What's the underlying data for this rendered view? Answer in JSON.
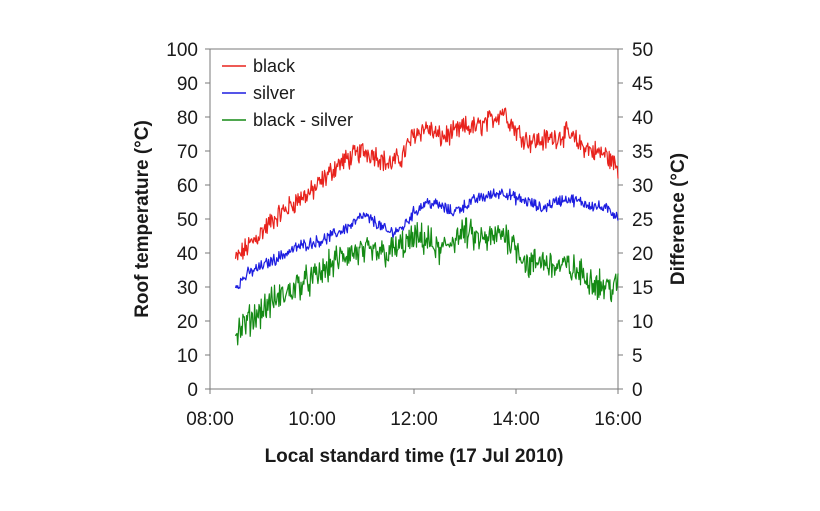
{
  "chart_data": {
    "type": "line",
    "xlabel": "Local standard time (17 Jul 2010)",
    "ylabel": "Roof temperature (°C)",
    "y2label": "Difference (°C)",
    "xlim": [
      8,
      16
    ],
    "ylim": [
      0,
      100
    ],
    "y2lim": [
      0,
      50
    ],
    "x_ticks": [
      8,
      10,
      12,
      14,
      16
    ],
    "x_tick_labels": [
      "08:00",
      "10:00",
      "12:00",
      "14:00",
      "16:00"
    ],
    "y_ticks": [
      0,
      10,
      20,
      30,
      40,
      50,
      60,
      70,
      80,
      90,
      100
    ],
    "y2_ticks": [
      0,
      5,
      10,
      15,
      20,
      25,
      30,
      35,
      40,
      45,
      50
    ],
    "grid": true,
    "legend_position": "top-left",
    "series": [
      {
        "name": "black",
        "axis": "left",
        "color": "#e8231d",
        "x": [
          8.5,
          8.75,
          9.0,
          9.25,
          9.5,
          9.75,
          10.0,
          10.25,
          10.5,
          10.75,
          11.0,
          11.25,
          11.5,
          11.75,
          12.0,
          12.25,
          12.5,
          12.75,
          13.0,
          13.25,
          13.5,
          13.75,
          14.0,
          14.25,
          14.5,
          14.75,
          15.0,
          15.25,
          15.5,
          15.75,
          16.0
        ],
        "values": [
          38,
          42,
          46,
          50,
          53,
          56,
          58,
          62,
          66,
          68,
          70,
          69,
          66,
          68,
          75,
          77,
          74,
          75,
          77,
          77,
          79,
          82,
          76,
          73,
          73,
          74,
          75,
          72,
          70,
          69,
          65
        ]
      },
      {
        "name": "silver",
        "axis": "left",
        "color": "#1d1de0",
        "x": [
          8.5,
          8.75,
          9.0,
          9.25,
          9.5,
          9.75,
          10.0,
          10.25,
          10.5,
          10.75,
          11.0,
          11.25,
          11.5,
          11.75,
          12.0,
          12.25,
          12.5,
          12.75,
          13.0,
          13.25,
          13.5,
          13.75,
          14.0,
          14.25,
          14.5,
          14.75,
          15.0,
          15.25,
          15.5,
          15.75,
          16.0
        ],
        "values": [
          30,
          34,
          36,
          38,
          40,
          42,
          43,
          44,
          46,
          48,
          51,
          49,
          46,
          47,
          52,
          55,
          54,
          52,
          54,
          56,
          57,
          58,
          56,
          55,
          53,
          55,
          56,
          55,
          54,
          53,
          51
        ]
      },
      {
        "name": "black - silver",
        "axis": "right",
        "color": "#158a15",
        "x": [
          8.5,
          8.75,
          9.0,
          9.25,
          9.5,
          9.75,
          10.0,
          10.25,
          10.5,
          10.75,
          11.0,
          11.25,
          11.5,
          11.75,
          12.0,
          12.25,
          12.5,
          12.75,
          13.0,
          13.25,
          13.5,
          13.75,
          14.0,
          14.25,
          14.5,
          14.75,
          15.0,
          15.25,
          15.5,
          15.75,
          16.0
        ],
        "values": [
          8,
          10,
          11.5,
          13,
          14,
          15.5,
          16,
          17.5,
          19,
          20,
          20,
          20,
          20,
          21,
          22,
          22,
          20,
          22,
          23,
          22,
          22,
          23,
          21,
          18,
          19,
          18,
          18,
          17,
          16,
          15,
          15
        ]
      }
    ]
  }
}
